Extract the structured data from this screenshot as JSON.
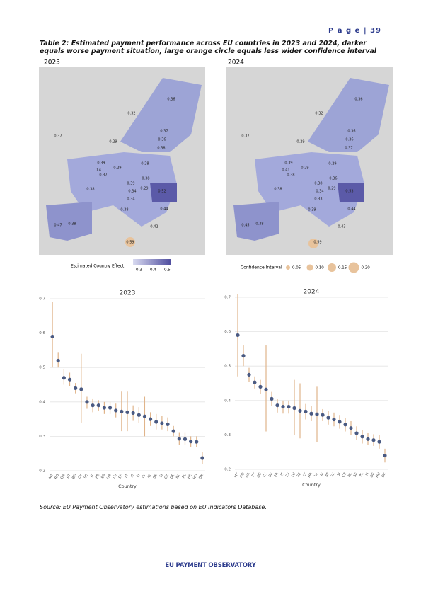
{
  "header": {
    "page": "P a g e | 39"
  },
  "title": "Table 2: Estimated payment performance across EU countries in 2023 and 2024, darker equals worse payment situation, large orange circle equals less wider confidence interval",
  "maps": [
    {
      "title": "2023",
      "legend": "Estimated Country Effect",
      "legend_ticks": [
        "0.3",
        "0.4",
        "0.5"
      ],
      "labels": [
        "0.36",
        "0.32",
        "0.37",
        "0.36",
        "0.38",
        "0.29",
        "0.37",
        "0.39",
        "0.4",
        "0.37",
        "0.29",
        "0.28",
        "0.38",
        "0.39",
        "0.34",
        "0.34",
        "0.38",
        "0.29",
        "0.52",
        "0.44",
        "0.38",
        "0.47",
        "0.38",
        "0.42",
        "0.59"
      ]
    },
    {
      "title": "2024",
      "legend": "Confidence Interval",
      "legend_ticks": [
        "0.05",
        "0.10",
        "0.15",
        "0.20"
      ],
      "labels": [
        "0.36",
        "0.32",
        "0.36",
        "0.36",
        "0.37",
        "0.29",
        "0.37",
        "0.39",
        "0.41",
        "0.38",
        "0.29",
        "0.29",
        "0.38",
        "0.38",
        "0.34",
        "0.33",
        "0.36",
        "0.29",
        "0.53",
        "0.44",
        "0.39",
        "0.45",
        "0.38",
        "0.43",
        "0.59"
      ]
    }
  ],
  "chart_data": [
    {
      "type": "dot",
      "title": "2023",
      "x_label": "Country",
      "categories": [
        "MT",
        "RO",
        "GR",
        "PT",
        "BG",
        "CY",
        "SE",
        "IT",
        "FR",
        "ES",
        "HR",
        "LU",
        "EE",
        "LT",
        "IE",
        "FI",
        "LV",
        "AT",
        "SK",
        "SI",
        "CZ",
        "DE",
        "NL",
        "PL",
        "BE",
        "HU",
        "DK"
      ],
      "values": [
        0.59,
        0.52,
        0.47,
        0.465,
        0.44,
        0.437,
        0.4,
        0.39,
        0.39,
        0.383,
        0.383,
        0.375,
        0.372,
        0.37,
        0.368,
        0.362,
        0.358,
        0.35,
        0.342,
        0.338,
        0.335,
        0.315,
        0.293,
        0.292,
        0.285,
        0.284,
        0.237
      ],
      "lower": [
        0.5,
        0.5,
        0.45,
        0.445,
        0.425,
        0.34,
        0.38,
        0.37,
        0.375,
        0.365,
        0.365,
        0.355,
        0.315,
        0.315,
        0.345,
        0.34,
        0.3,
        0.33,
        0.32,
        0.32,
        0.315,
        0.3,
        0.275,
        0.275,
        0.27,
        0.268,
        0.22
      ],
      "upper": [
        0.69,
        0.545,
        0.495,
        0.485,
        0.455,
        0.54,
        0.415,
        0.41,
        0.405,
        0.4,
        0.4,
        0.395,
        0.43,
        0.43,
        0.39,
        0.385,
        0.415,
        0.37,
        0.365,
        0.36,
        0.355,
        0.33,
        0.31,
        0.31,
        0.3,
        0.3,
        0.255
      ],
      "color": "#4a5a82",
      "error_color": "#e0b48a",
      "ylim": [
        0.2,
        0.7
      ],
      "yticks": [
        0.2,
        0.3,
        0.4,
        0.5,
        0.6,
        0.7
      ],
      "grid": true
    },
    {
      "type": "dot",
      "title": "2024",
      "x_label": "Country",
      "categories": [
        "MT",
        "RO",
        "GR",
        "PT",
        "BG",
        "CY",
        "BE",
        "FR",
        "IT",
        "ES",
        "LU",
        "EE",
        "LT",
        "HR",
        "LV",
        "IE",
        "AT",
        "SK",
        "SI",
        "CZ",
        "NL",
        "SE",
        "PL",
        "FI",
        "DE",
        "HU",
        "DK"
      ],
      "values": [
        0.59,
        0.53,
        0.475,
        0.453,
        0.44,
        0.432,
        0.405,
        0.386,
        0.382,
        0.382,
        0.378,
        0.37,
        0.368,
        0.362,
        0.36,
        0.358,
        0.35,
        0.345,
        0.338,
        0.33,
        0.32,
        0.305,
        0.295,
        0.288,
        0.285,
        0.28,
        0.24
      ],
      "lower": [
        0.47,
        0.5,
        0.455,
        0.435,
        0.42,
        0.31,
        0.385,
        0.365,
        0.362,
        0.362,
        0.3,
        0.29,
        0.345,
        0.34,
        0.28,
        0.34,
        0.33,
        0.325,
        0.318,
        0.31,
        0.3,
        0.285,
        0.275,
        0.27,
        0.268,
        0.26,
        0.22
      ],
      "upper": [
        0.71,
        0.56,
        0.495,
        0.47,
        0.46,
        0.56,
        0.425,
        0.405,
        0.4,
        0.4,
        0.46,
        0.45,
        0.39,
        0.385,
        0.44,
        0.375,
        0.37,
        0.365,
        0.358,
        0.35,
        0.34,
        0.325,
        0.315,
        0.305,
        0.302,
        0.3,
        0.26
      ],
      "color": "#4a5a82",
      "error_color": "#e0b48a",
      "ylim": [
        0.2,
        0.7
      ],
      "yticks": [
        0.2,
        0.3,
        0.4,
        0.5,
        0.6,
        0.7
      ],
      "grid": true
    }
  ],
  "source": "Source: EU Payment Observatory estimations based on EU Indicators Database.",
  "footer": "EU PAYMENT OBSERVATORY"
}
